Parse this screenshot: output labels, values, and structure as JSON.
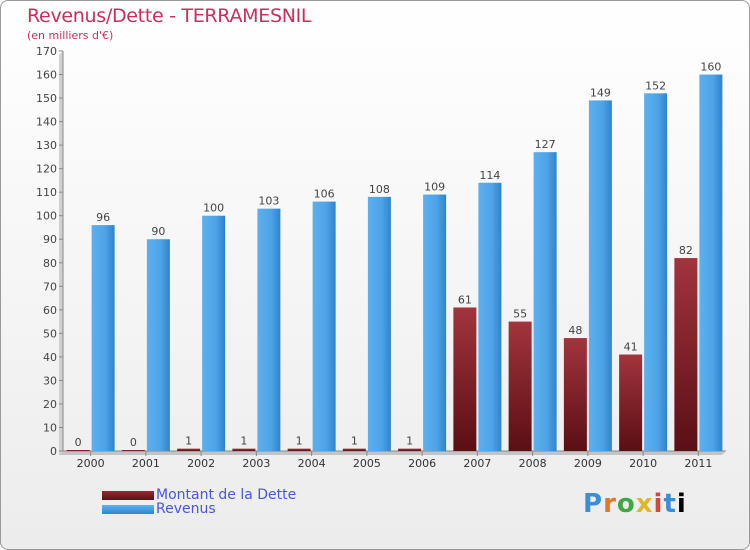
{
  "header": {
    "title": "Revenus/Dette - TERRAMESNIL",
    "subtitle": "(en milliers d'€)"
  },
  "legend": {
    "debt_label": "Montant de la Dette",
    "revenue_label": "Revenus"
  },
  "logo": {
    "text": "Proxiti"
  },
  "colors": {
    "debt": "#7a1f26",
    "revenue": "#4da3e6",
    "title": "#c8305a"
  },
  "chart_data": {
    "type": "bar",
    "title": "Revenus/Dette - TERRAMESNIL",
    "subtitle": "(en milliers d'€)",
    "categories": [
      "2000",
      "2001",
      "2002",
      "2003",
      "2004",
      "2005",
      "2006",
      "2007",
      "2008",
      "2009",
      "2010",
      "2011"
    ],
    "series": [
      {
        "name": "Montant de la Dette",
        "values": [
          0,
          0,
          1,
          1,
          1,
          1,
          1,
          61,
          55,
          48,
          41,
          82
        ]
      },
      {
        "name": "Revenus",
        "values": [
          96,
          90,
          100,
          103,
          106,
          108,
          109,
          114,
          127,
          149,
          152,
          160
        ]
      }
    ],
    "ylim": [
      0,
      170
    ],
    "yticks": [
      0,
      10,
      20,
      30,
      40,
      50,
      60,
      70,
      80,
      90,
      100,
      110,
      120,
      130,
      140,
      150,
      160,
      170
    ],
    "grid": false,
    "legend_position": "bottom-left"
  }
}
